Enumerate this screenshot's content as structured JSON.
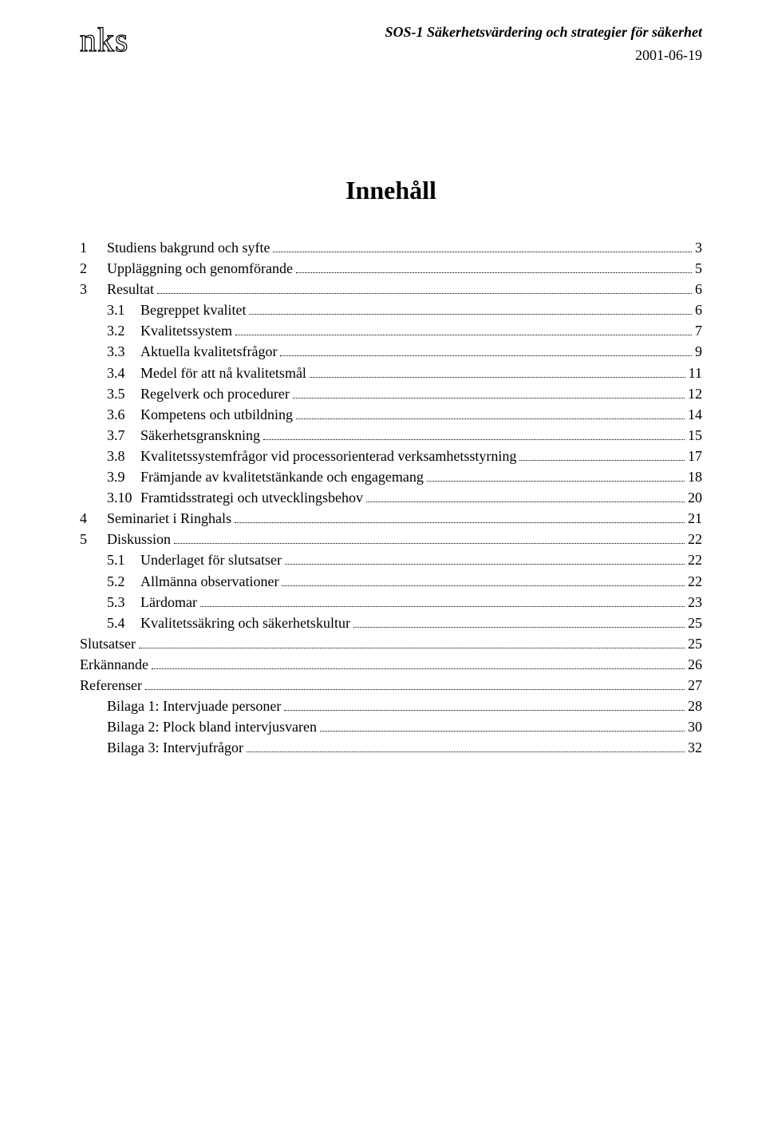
{
  "header": {
    "logo": "nks",
    "title_line": "SOS-1 Säkerhetsvärdering och strategier för säkerhet",
    "date": "2001-06-19"
  },
  "toc_title": "Innehåll",
  "toc": [
    {
      "level": 0,
      "num": "1",
      "label": "Studiens bakgrund och syfte",
      "page": "3"
    },
    {
      "level": 0,
      "num": "2",
      "label": "Uppläggning och genomförande",
      "page": "5"
    },
    {
      "level": 0,
      "num": "3",
      "label": "Resultat",
      "page": "6"
    },
    {
      "level": 1,
      "num": "3.1",
      "label": "Begreppet kvalitet",
      "page": "6"
    },
    {
      "level": 1,
      "num": "3.2",
      "label": "Kvalitetssystem",
      "page": "7"
    },
    {
      "level": 1,
      "num": "3.3",
      "label": "Aktuella kvalitetsfrågor",
      "page": "9"
    },
    {
      "level": 1,
      "num": "3.4",
      "label": "Medel för att nå kvalitetsmål",
      "page": "11"
    },
    {
      "level": 1,
      "num": "3.5",
      "label": "Regelverk och procedurer",
      "page": "12"
    },
    {
      "level": 1,
      "num": "3.6",
      "label": "Kompetens och utbildning",
      "page": "14"
    },
    {
      "level": 1,
      "num": "3.7",
      "label": "Säkerhetsgranskning",
      "page": "15"
    },
    {
      "level": 1,
      "num": "3.8",
      "label": "Kvalitetssystemfrågor vid processorienterad verksamhetsstyrning",
      "page": "17"
    },
    {
      "level": 1,
      "num": "3.9",
      "label": "Främjande av kvalitetstänkande och engagemang",
      "page": "18"
    },
    {
      "level": 1,
      "num": "3.10",
      "label": "Framtidsstrategi och utvecklingsbehov",
      "page": "20"
    },
    {
      "level": 0,
      "num": "4",
      "label": "Seminariet i Ringhals",
      "page": "21"
    },
    {
      "level": 0,
      "num": "5",
      "label": "Diskussion",
      "page": "22"
    },
    {
      "level": 1,
      "num": "5.1",
      "label": "Underlaget för slutsatser",
      "page": "22"
    },
    {
      "level": 1,
      "num": "5.2",
      "label": "Allmänna observationer",
      "page": "22"
    },
    {
      "level": 1,
      "num": "5.3",
      "label": "Lärdomar",
      "page": "23"
    },
    {
      "level": 1,
      "num": "5.4",
      "label": "Kvalitetssäkring och säkerhetskultur",
      "page": "25"
    },
    {
      "level": 0,
      "num": "",
      "label": "Slutsatser",
      "page": "25"
    },
    {
      "level": 0,
      "num": "",
      "label": "Erkännande",
      "page": "26"
    },
    {
      "level": 0,
      "num": "",
      "label": "Referenser",
      "page": "27"
    },
    {
      "level": 1,
      "num": "",
      "label": "Bilaga 1: Intervjuade personer",
      "page": "28"
    },
    {
      "level": 1,
      "num": "",
      "label": "Bilaga 2: Plock bland intervjusvaren",
      "page": "30"
    },
    {
      "level": 1,
      "num": "",
      "label": "Bilaga 3: Intervjufrågor",
      "page": "32"
    }
  ]
}
